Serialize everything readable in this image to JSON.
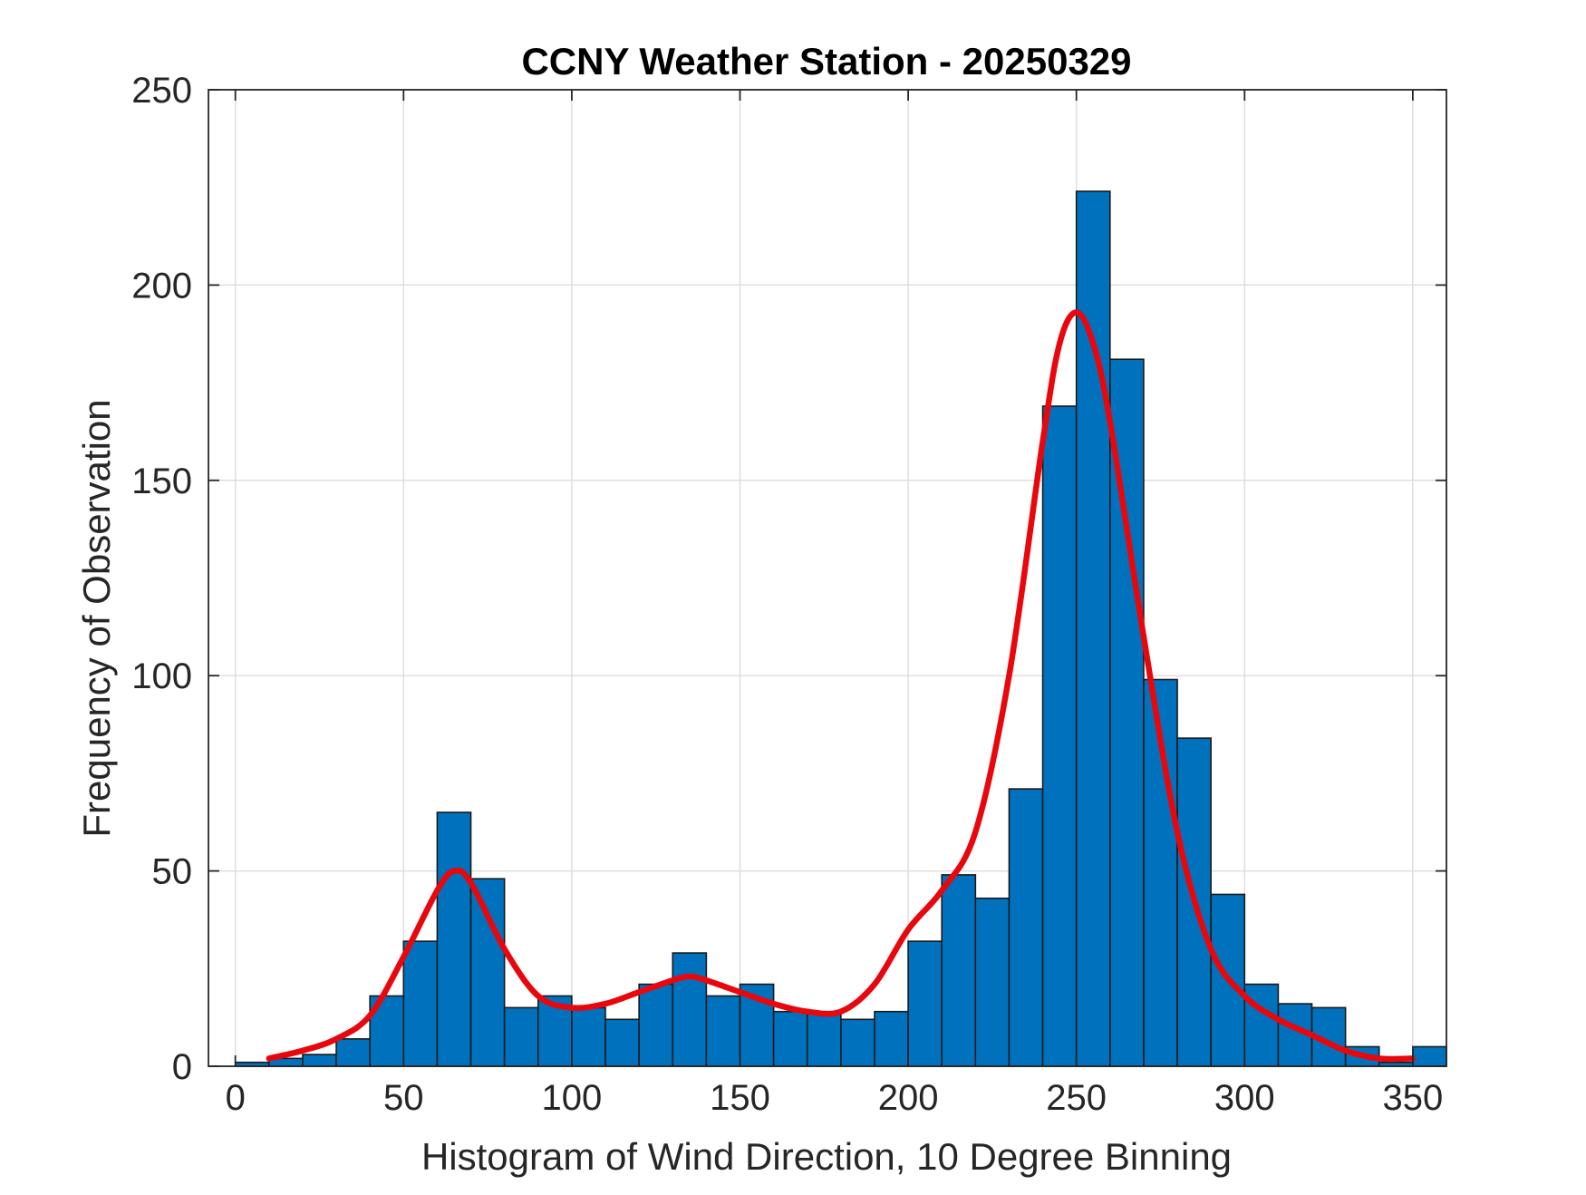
{
  "chart_data": {
    "type": "bar",
    "title": "CCNY Weather Station - 20250329",
    "xlabel": "Histogram of Wind Direction, 10 Degree Binning",
    "ylabel": "Frequency of Observation",
    "xlim": [
      -8,
      360
    ],
    "ylim": [
      0,
      250
    ],
    "xticks": [
      0,
      50,
      100,
      150,
      200,
      250,
      300,
      350
    ],
    "yticks": [
      0,
      50,
      100,
      150,
      200,
      250
    ],
    "grid": true,
    "bin_width": 10,
    "bins": [
      {
        "start": 0,
        "value": 1
      },
      {
        "start": 10,
        "value": 2
      },
      {
        "start": 20,
        "value": 3
      },
      {
        "start": 30,
        "value": 7
      },
      {
        "start": 40,
        "value": 18
      },
      {
        "start": 50,
        "value": 32
      },
      {
        "start": 60,
        "value": 65
      },
      {
        "start": 70,
        "value": 48
      },
      {
        "start": 80,
        "value": 15
      },
      {
        "start": 90,
        "value": 18
      },
      {
        "start": 100,
        "value": 15
      },
      {
        "start": 110,
        "value": 12
      },
      {
        "start": 120,
        "value": 21
      },
      {
        "start": 130,
        "value": 29
      },
      {
        "start": 140,
        "value": 18
      },
      {
        "start": 150,
        "value": 21
      },
      {
        "start": 160,
        "value": 14
      },
      {
        "start": 170,
        "value": 14
      },
      {
        "start": 180,
        "value": 12
      },
      {
        "start": 190,
        "value": 14
      },
      {
        "start": 200,
        "value": 32
      },
      {
        "start": 210,
        "value": 49
      },
      {
        "start": 220,
        "value": 43
      },
      {
        "start": 230,
        "value": 71
      },
      {
        "start": 240,
        "value": 169
      },
      {
        "start": 250,
        "value": 224
      },
      {
        "start": 260,
        "value": 181
      },
      {
        "start": 270,
        "value": 99
      },
      {
        "start": 280,
        "value": 84
      },
      {
        "start": 290,
        "value": 44
      },
      {
        "start": 300,
        "value": 21
      },
      {
        "start": 310,
        "value": 16
      },
      {
        "start": 320,
        "value": 15
      },
      {
        "start": 330,
        "value": 5
      },
      {
        "start": 340,
        "value": 1
      },
      {
        "start": 350,
        "value": 5
      }
    ],
    "curve": {
      "x": [
        10,
        20,
        30,
        40,
        50,
        60,
        65,
        70,
        80,
        90,
        100,
        110,
        120,
        130,
        135,
        140,
        150,
        160,
        170,
        180,
        190,
        200,
        210,
        220,
        230,
        240,
        245,
        250,
        255,
        260,
        270,
        280,
        290,
        300,
        310,
        320,
        330,
        340,
        350
      ],
      "y": [
        2,
        4,
        7,
        13,
        28,
        45,
        50,
        47,
        30,
        18,
        15,
        16,
        19,
        22,
        23,
        22,
        19,
        16,
        14,
        14,
        21,
        35,
        45,
        60,
        100,
        160,
        185,
        193,
        185,
        165,
        110,
        60,
        30,
        18,
        12,
        8,
        4,
        2,
        2
      ]
    },
    "colors": {
      "bar_fill": "#0072BD",
      "bar_edge": "#1a1a1a",
      "curve": "#e8070d",
      "grid": "#dedede",
      "axes": "#262626"
    }
  }
}
